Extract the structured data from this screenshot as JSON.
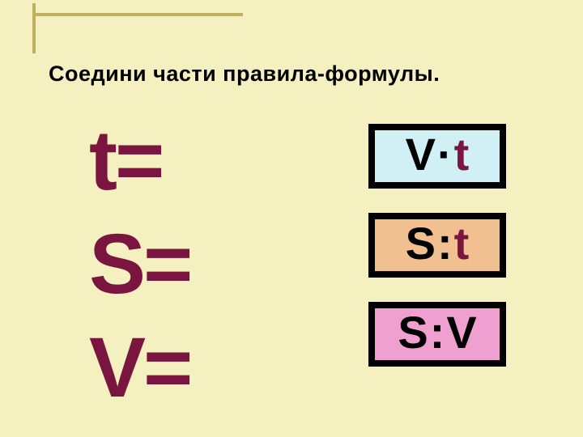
{
  "title": "Соедини  части  правила-формулы.",
  "colors": {
    "background": "#f5f0c0",
    "frame": "#c0b060",
    "maroon": "#7a1540",
    "black": "#000000",
    "box1_bg": "#d0f0f5",
    "box2_bg": "#f0c090",
    "box3_bg": "#f0a0d0"
  },
  "lhs": [
    {
      "var": "t",
      "eq": "="
    },
    {
      "var": "S",
      "eq": "="
    },
    {
      "var": "V",
      "eq": "="
    }
  ],
  "rhs": [
    {
      "var1": "V",
      "op": "·",
      "var2": "t",
      "bg": "#d0f0f5"
    },
    {
      "var1": "S",
      "op": ":",
      "var2": "t",
      "bg": "#f0c090"
    },
    {
      "var1": "S",
      "op": ":",
      "var2": "V",
      "bg": "#f0a0d0"
    }
  ]
}
